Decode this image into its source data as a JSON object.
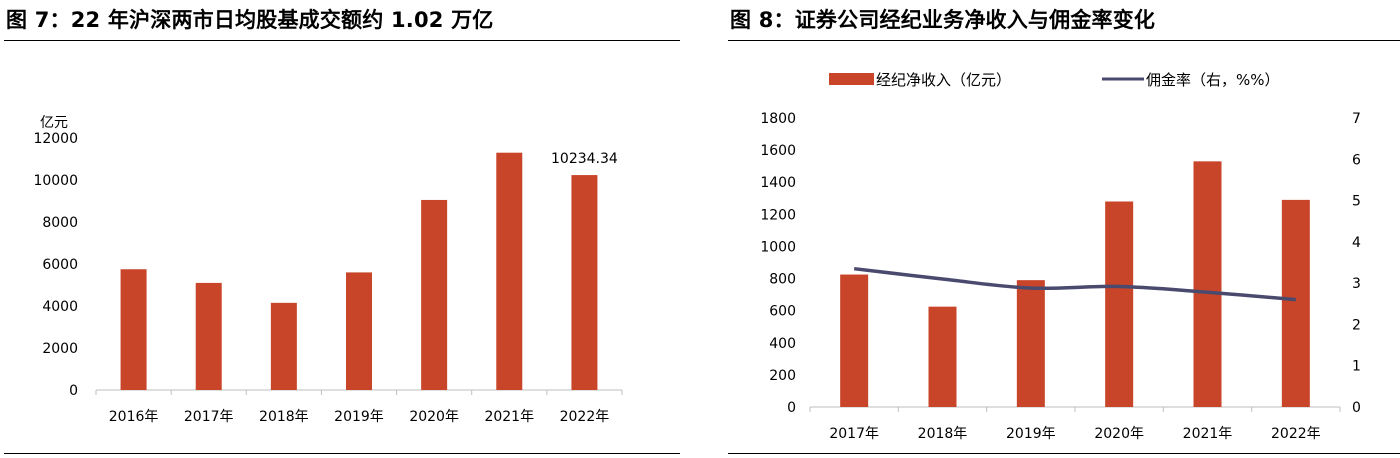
{
  "figures": [
    {
      "title": "图 7：22 年沪深两市日均股基成交额约 1.02 万亿"
    },
    {
      "title": "图 8：证券公司经纪业务净收入与佣金率变化"
    }
  ],
  "colors": {
    "bar": "#C8452A",
    "line": "#4A4A6E",
    "axis": "#bfbfbf"
  },
  "chart_data": [
    {
      "type": "bar",
      "categories": [
        "2016年",
        "2017年",
        "2018年",
        "2019年",
        "2020年",
        "2021年",
        "2022年"
      ],
      "values": [
        5750,
        5100,
        4150,
        5600,
        9050,
        11300,
        10234.34
      ],
      "unit_label": "亿元",
      "ylim": [
        0,
        12000
      ],
      "yticks": [
        "0",
        "2000",
        "4000",
        "6000",
        "8000",
        "10000",
        "12000"
      ],
      "data_labels": [
        {
          "index": 6,
          "text": "10234.34"
        }
      ],
      "grid": false
    },
    {
      "type": "bar+line",
      "categories": [
        "2017年",
        "2018年",
        "2019年",
        "2020年",
        "2021年",
        "2022年"
      ],
      "series": [
        {
          "name": "经纪净收入（亿元）",
          "type": "bar",
          "axis": "left",
          "values": [
            825,
            625,
            790,
            1280,
            1530,
            1290
          ]
        },
        {
          "name": "佣金率（右，%%）",
          "type": "line",
          "axis": "right",
          "values": [
            3.35,
            3.1,
            2.88,
            2.92,
            2.78,
            2.6
          ]
        }
      ],
      "ylim_left": [
        0,
        1800
      ],
      "yticks_left": [
        "0",
        "200",
        "400",
        "600",
        "800",
        "1000",
        "1200",
        "1400",
        "1600",
        "1800"
      ],
      "ylim_right": [
        0,
        7
      ],
      "yticks_right": [
        "0",
        "1",
        "2",
        "3",
        "4",
        "5",
        "6",
        "7"
      ],
      "legend_position": "top",
      "grid": false
    }
  ]
}
